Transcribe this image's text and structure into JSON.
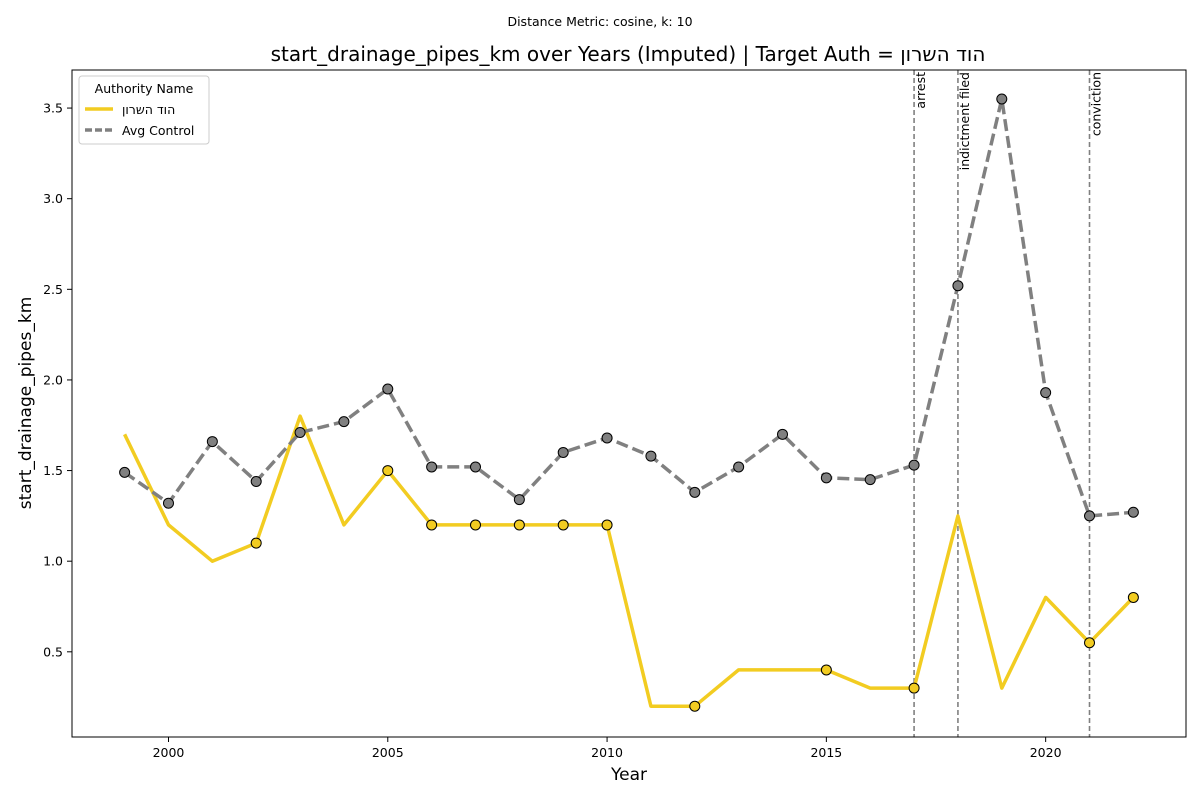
{
  "suptitle": "Distance Metric: cosine, k: 10",
  "chart_data": {
    "type": "line",
    "title": "start_drainage_pipes_km over Years (Imputed) | Target Auth = הוד השרון",
    "xlabel": "Year",
    "ylabel": "start_drainage_pipes_km",
    "xlim": [
      1997.8,
      2023.2
    ],
    "ylim": [
      0.03,
      3.71
    ],
    "xticks": [
      2000,
      2005,
      2010,
      2015,
      2020
    ],
    "yticks": [
      0.5,
      1.0,
      1.5,
      2.0,
      2.5,
      3.0,
      3.5
    ],
    "xtick_labels": [
      "2000",
      "2005",
      "2010",
      "2015",
      "2020"
    ],
    "ytick_labels": [
      "0.5",
      "1.0",
      "1.5",
      "2.0",
      "2.5",
      "3.0",
      "3.5"
    ],
    "grid": false,
    "legend": {
      "title": "Authority Name",
      "position": "top-left"
    },
    "series": [
      {
        "name": "הוד השרון",
        "color": "#F2CC21",
        "style": "solid",
        "x": [
          1999,
          2000,
          2001,
          2002,
          2003,
          2004,
          2005,
          2006,
          2007,
          2008,
          2009,
          2010,
          2011,
          2012,
          2013,
          2014,
          2015,
          2016,
          2017,
          2018,
          2019,
          2020,
          2021,
          2022
        ],
        "values": [
          1.7,
          1.2,
          1.0,
          1.1,
          1.8,
          1.2,
          1.5,
          1.2,
          1.2,
          1.2,
          1.2,
          1.2,
          0.2,
          0.2,
          0.4,
          0.4,
          0.4,
          0.3,
          0.3,
          1.25,
          0.3,
          0.8,
          0.55,
          0.8
        ],
        "markers_x": [
          2002,
          2005,
          2006,
          2007,
          2008,
          2009,
          2010,
          2012,
          2015,
          2017,
          2021,
          2022
        ]
      },
      {
        "name": "Avg Control",
        "color": "#808080",
        "style": "dashed",
        "x": [
          1999,
          2000,
          2001,
          2002,
          2003,
          2004,
          2005,
          2006,
          2007,
          2008,
          2009,
          2010,
          2011,
          2012,
          2013,
          2014,
          2015,
          2016,
          2017,
          2018,
          2019,
          2020,
          2021,
          2022
        ],
        "values": [
          1.49,
          1.32,
          1.66,
          1.44,
          1.71,
          1.77,
          1.95,
          1.52,
          1.52,
          1.34,
          1.6,
          1.68,
          1.58,
          1.38,
          1.52,
          1.7,
          1.46,
          1.45,
          1.53,
          2.52,
          3.55,
          1.93,
          1.25,
          1.27
        ],
        "markers_x": [
          1999,
          2000,
          2001,
          2002,
          2003,
          2004,
          2005,
          2006,
          2007,
          2008,
          2009,
          2010,
          2011,
          2012,
          2013,
          2014,
          2015,
          2016,
          2017,
          2018,
          2019,
          2020,
          2021,
          2022
        ]
      }
    ],
    "events": [
      {
        "x": 2017,
        "label": "arrest"
      },
      {
        "x": 2018,
        "label": "indictment filed"
      },
      {
        "x": 2021,
        "label": "conviction"
      }
    ]
  }
}
